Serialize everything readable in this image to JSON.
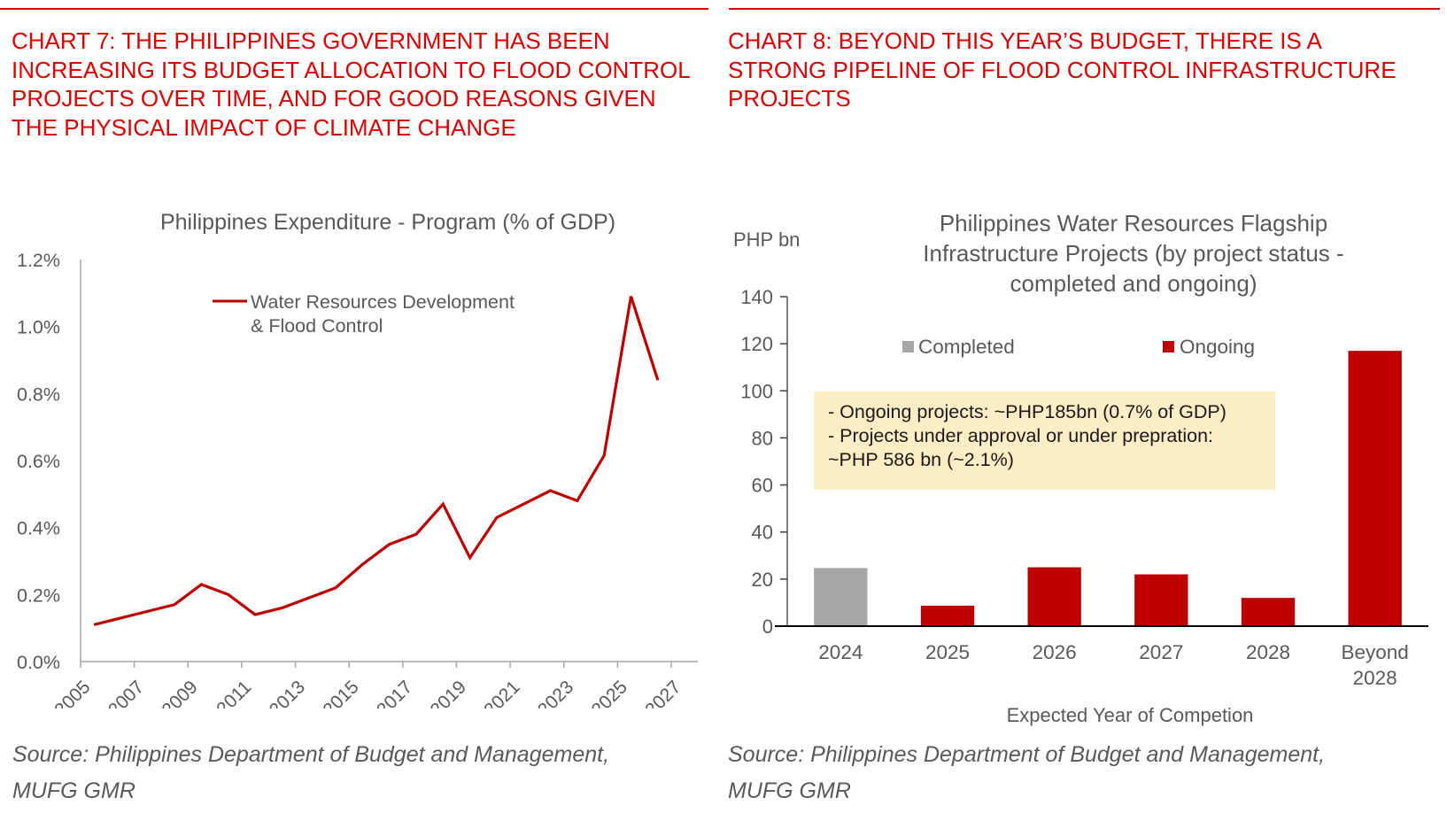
{
  "left_panel": {
    "heading": "CHART 7: THE PHILIPPINES GOVERNMENT HAS BEEN INCREASING ITS BUDGET ALLOCATION TO FLOOD CONTROL PROJECTS OVER TIME, AND FOR GOOD REASONS GIVEN THE PHYSICAL IMPACT OF CLIMATE CHANGE",
    "source_line1": "Source: Philippines Department of Budget and Management,",
    "source_line2": "MUFG GMR"
  },
  "right_panel": {
    "heading": "CHART 8: BEYOND THIS YEAR’S BUDGET, THERE IS A STRONG PIPELINE OF FLOOD CONTROL INFRASTRUCTURE PROJECTS",
    "source_line1": "Source: Philippines Department of Budget and Management,",
    "source_line2": "MUFG GMR",
    "annotation": {
      "line1": "- Ongoing projects: ~PHP185bn (0.7% of GDP)",
      "line2": "- Projects under approval or under prepration:",
      "line3": "~PHP 586 bn (~2.1%)"
    }
  },
  "colors": {
    "heading": "#e00000",
    "series_red": "#c00000",
    "completed_gray": "#a6a6a6",
    "annotation_bg": "#fdedc4",
    "text_gray": "#595959"
  },
  "chart_data": [
    {
      "type": "line",
      "title": "Philippines Expenditure - Program (% of GDP)",
      "xlabel": "",
      "ylabel": "",
      "x_tick_labels": [
        "2005",
        "2007",
        "2009",
        "2011",
        "2013",
        "2015",
        "2017",
        "2019",
        "2021",
        "2023",
        "2025",
        "2027"
      ],
      "xlim": [
        2005,
        2027
      ],
      "y_tick_labels": [
        "0.0%",
        "0.2%",
        "0.4%",
        "0.6%",
        "0.8%",
        "1.0%",
        "1.2%"
      ],
      "ylim": [
        0,
        1.2
      ],
      "grid": false,
      "legend": {
        "position": "top-center",
        "entries": [
          "Water Resources Development & Flood Control"
        ],
        "line1": "Water Resources Development",
        "line2": "& Flood Control"
      },
      "series": [
        {
          "name": "Water Resources Development & Flood Control",
          "x": [
            2005,
            2006,
            2007,
            2008,
            2009,
            2010,
            2011,
            2012,
            2013,
            2014,
            2015,
            2016,
            2017,
            2018,
            2019,
            2020,
            2021,
            2022,
            2023,
            2024,
            2025,
            2026
          ],
          "values": [
            0.11,
            0.13,
            0.15,
            0.17,
            0.23,
            0.2,
            0.14,
            0.16,
            0.19,
            0.22,
            0.29,
            0.35,
            0.38,
            0.47,
            0.31,
            0.43,
            0.47,
            0.51,
            0.48,
            0.615,
            1.09,
            0.84
          ]
        }
      ]
    },
    {
      "type": "bar",
      "title": "Philippines Water Resources Flagship Infrastructure Projects (by project status - completed and ongoing)",
      "title_lines": [
        "Philippines Water Resources Flagship",
        "Infrastructure Projects (by project status -",
        "completed and ongoing)"
      ],
      "xlabel": "Expected Year of Competion",
      "ylabel": "PHP bn",
      "categories": [
        "2024",
        "2025",
        "2026",
        "2027",
        "2028",
        "Beyond 2028"
      ],
      "category_lines": [
        [
          "2024"
        ],
        [
          "2025"
        ],
        [
          "2026"
        ],
        [
          "2027"
        ],
        [
          "2028"
        ],
        [
          "Beyond",
          "2028"
        ]
      ],
      "y_tick_labels": [
        "0",
        "20",
        "40",
        "60",
        "80",
        "100",
        "120",
        "140"
      ],
      "ylim": [
        0,
        140
      ],
      "grid": false,
      "legend": {
        "position": "top",
        "entries": [
          "Completed",
          "Ongoing"
        ]
      },
      "series": [
        {
          "name": "Completed",
          "values": [
            24.7,
            0,
            0,
            0,
            0,
            0
          ]
        },
        {
          "name": "Ongoing",
          "values": [
            0,
            8.7,
            25.0,
            22.0,
            12.0,
            117.0
          ]
        }
      ]
    }
  ]
}
